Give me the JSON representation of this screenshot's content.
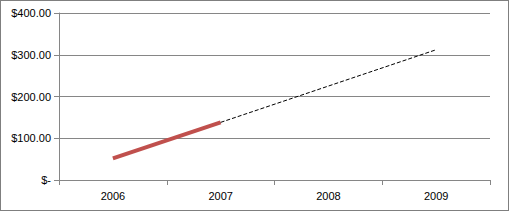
{
  "chart_data": {
    "type": "line",
    "categories": [
      "2006",
      "2007",
      "2008",
      "2009"
    ],
    "series": [
      {
        "color": "#c0504d",
        "line_style": "solid",
        "values": [
          52,
          138,
          null,
          null
        ]
      },
      {
        "color": "#000000",
        "line_style": "dashed",
        "values": [
          null,
          138,
          225,
          312
        ]
      }
    ],
    "ylim": [
      0,
      400
    ],
    "yticks": [
      {
        "value": 0,
        "label": "$-"
      },
      {
        "value": 100,
        "label": "$100.00"
      },
      {
        "value": 200,
        "label": "$200.00"
      },
      {
        "value": 300,
        "label": "$300.00"
      },
      {
        "value": 400,
        "label": "$400.00"
      }
    ],
    "grid": true
  }
}
